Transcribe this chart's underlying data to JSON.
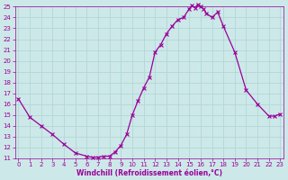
{
  "x": [
    0,
    1,
    2,
    3,
    4,
    5,
    6,
    6.5,
    7,
    7.5,
    8,
    8.5,
    9,
    9.5,
    10,
    10.5,
    11,
    11.5,
    12,
    12.5,
    13,
    13.5,
    14,
    14.5,
    15,
    15.25,
    15.5,
    15.75,
    16,
    16.25,
    16.5,
    17,
    17.5,
    18,
    19,
    20,
    21,
    22,
    22.5,
    23
  ],
  "y": [
    16.5,
    14.8,
    14.0,
    13.2,
    12.3,
    11.5,
    11.2,
    11.1,
    11.1,
    11.2,
    11.2,
    11.6,
    12.2,
    13.2,
    15.0,
    16.3,
    17.5,
    18.5,
    20.8,
    21.5,
    22.5,
    23.2,
    23.8,
    24.0,
    24.8,
    25.1,
    24.9,
    25.2,
    25.0,
    24.8,
    24.4,
    24.0,
    24.5,
    23.2,
    20.8,
    17.3,
    16.0,
    14.9,
    14.9,
    15.1
  ],
  "line_color": "#990099",
  "marker": "x",
  "marker_size": 2.5,
  "markeredgewidth": 0.8,
  "linewidth": 0.9,
  "xlabel": "Windchill (Refroidissement éolien,°C)",
  "ylim": [
    11,
    25
  ],
  "xlim_min": -0.3,
  "xlim_max": 23.3,
  "yticks": [
    11,
    12,
    13,
    14,
    15,
    16,
    17,
    18,
    19,
    20,
    21,
    22,
    23,
    24,
    25
  ],
  "xticks": [
    0,
    1,
    2,
    3,
    4,
    5,
    6,
    7,
    8,
    9,
    10,
    11,
    12,
    13,
    14,
    15,
    16,
    17,
    18,
    19,
    20,
    21,
    22,
    23
  ],
  "bg_color": "#cde8e8",
  "grid_color": "#b0d8d8",
  "font_color": "#990099",
  "tick_fontsize": 5,
  "xlabel_fontsize": 5.5
}
